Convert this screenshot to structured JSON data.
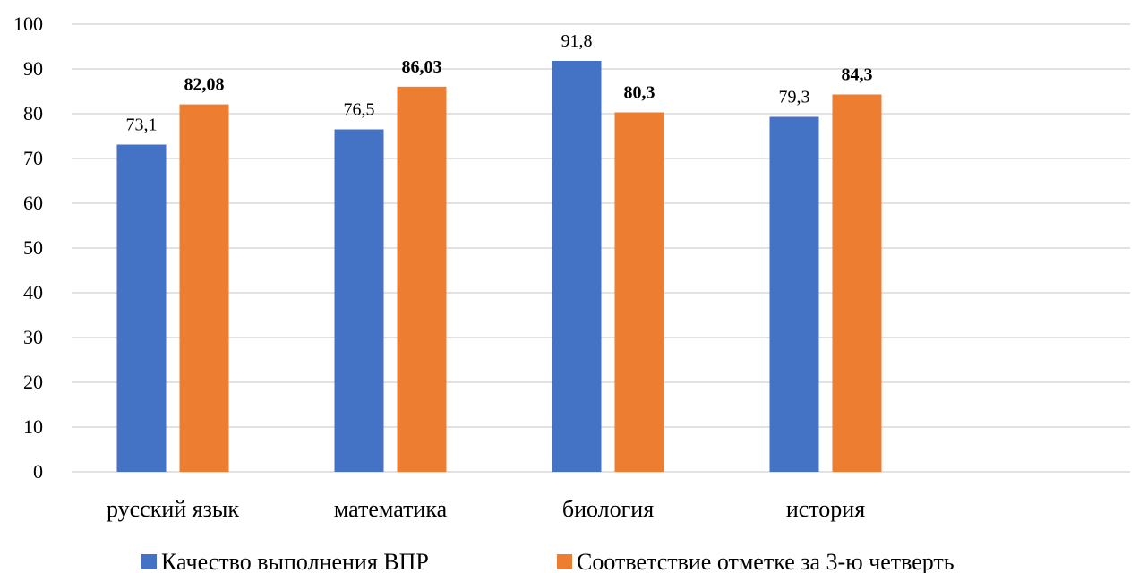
{
  "chart_data": {
    "type": "bar",
    "categories": [
      "русский язык",
      "математика",
      "биология",
      "история"
    ],
    "series": [
      {
        "name": "Качество выполнения ВПР",
        "values": [
          73.1,
          76.5,
          91.8,
          79.3
        ],
        "labels": [
          "73,1",
          "76,5",
          "91,8",
          "79,3"
        ],
        "color": "#4472C4",
        "label_bold": false
      },
      {
        "name": "Соответствие отметке за 3-ю четверть",
        "values": [
          82.08,
          86.03,
          80.3,
          84.3
        ],
        "labels": [
          "82,08",
          "86,03",
          "80,3",
          "84,3"
        ],
        "color": "#ED7D31",
        "label_bold": true
      }
    ],
    "ylim": [
      0,
      100
    ],
    "yticks": [
      0,
      10,
      20,
      30,
      40,
      50,
      60,
      70,
      80,
      90,
      100
    ],
    "grid": true,
    "gridColor": "#d9d9d9",
    "legend": "bottom"
  }
}
